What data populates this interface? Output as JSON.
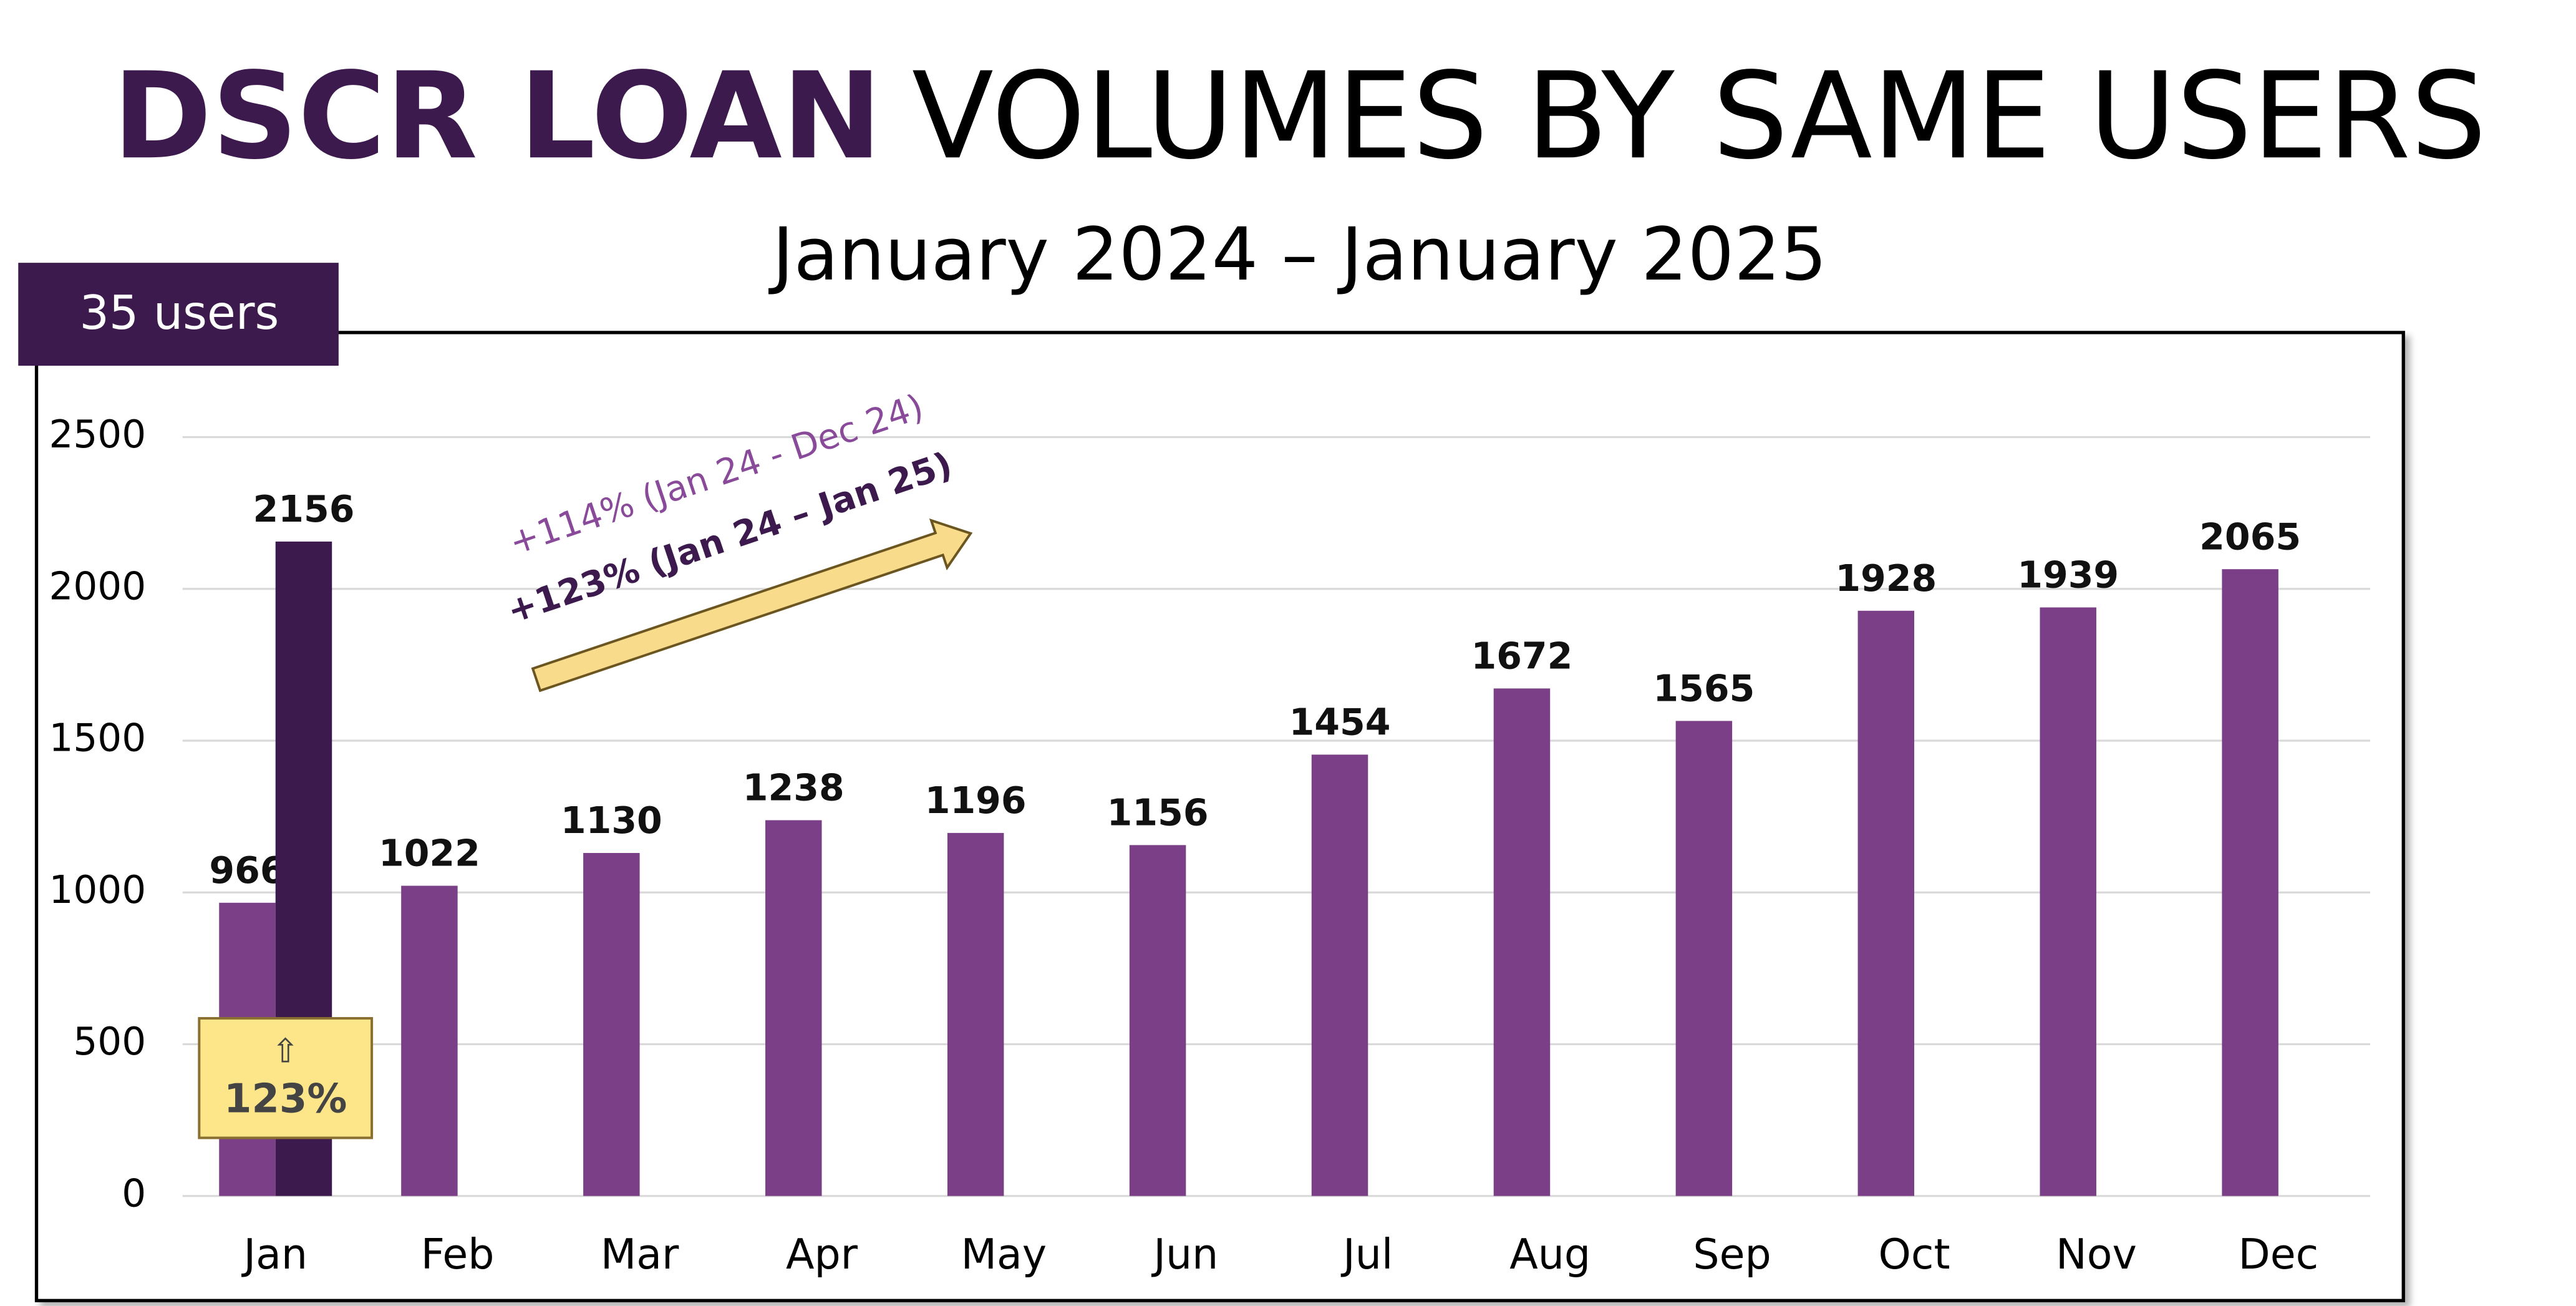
{
  "chart_data": {
    "type": "bar",
    "title": {
      "emphasis": "DSCR LOAN",
      "text": "VOLUMES BY SAME USERS"
    },
    "subtitle": "January 2024 – January 2025",
    "badge": "35 users",
    "annotations": [
      "+114% (Jan 24 - Dec 24)",
      "+123% (Jan 24 – Jan 25)"
    ],
    "callout": {
      "icon": "⇧",
      "text": "123%"
    },
    "categories": [
      "Jan",
      "Feb",
      "Mar",
      "Apr",
      "May",
      "Jun",
      "Jul",
      "Aug",
      "Sep",
      "Oct",
      "Nov",
      "Dec"
    ],
    "series": [
      {
        "color": "#7b3f87",
        "values": [
          966,
          1022,
          1130,
          1238,
          1196,
          1156,
          1454,
          1672,
          1565,
          1928,
          1939,
          2065
        ]
      },
      {
        "color": "#3d1a4d",
        "values": [
          2156,
          null,
          null,
          null,
          null,
          null,
          null,
          null,
          null,
          null,
          null,
          null
        ]
      }
    ],
    "ylim": [
      0,
      2500
    ],
    "yticks": [
      0,
      500,
      1000,
      1500,
      2000,
      2500
    ],
    "grid": true
  }
}
